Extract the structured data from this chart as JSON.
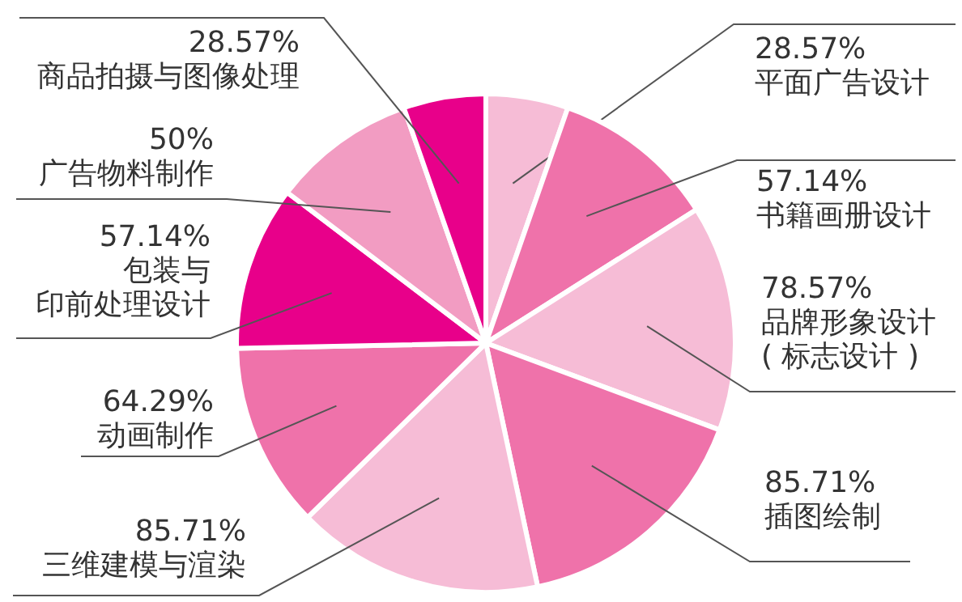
{
  "chart_data": {
    "type": "pie",
    "categories": [
      "平面广告设计",
      "书籍画册设计",
      "品牌形象设计\n( 标志设计 )",
      "插图绘制",
      "三维建模与渲染",
      "动画制作",
      "包装与印前处理设计",
      "广告物料制作",
      "商品拍摄与图像处理"
    ],
    "values": [
      28.57,
      57.14,
      78.57,
      85.71,
      85.71,
      64.29,
      57.14,
      50,
      28.57
    ],
    "value_labels": [
      "28.57%",
      "57.14%",
      "78.57%",
      "85.71%",
      "85.71%",
      "64.29%",
      "57.14%",
      "50%",
      "28.57%"
    ],
    "colors": [
      "#f6bcd6",
      "#ef72aa",
      "#f6bcd6",
      "#ef72aa",
      "#f6bcd6",
      "#ef72aa",
      "#e8008a",
      "#f29cc2",
      "#e8008a"
    ]
  }
}
